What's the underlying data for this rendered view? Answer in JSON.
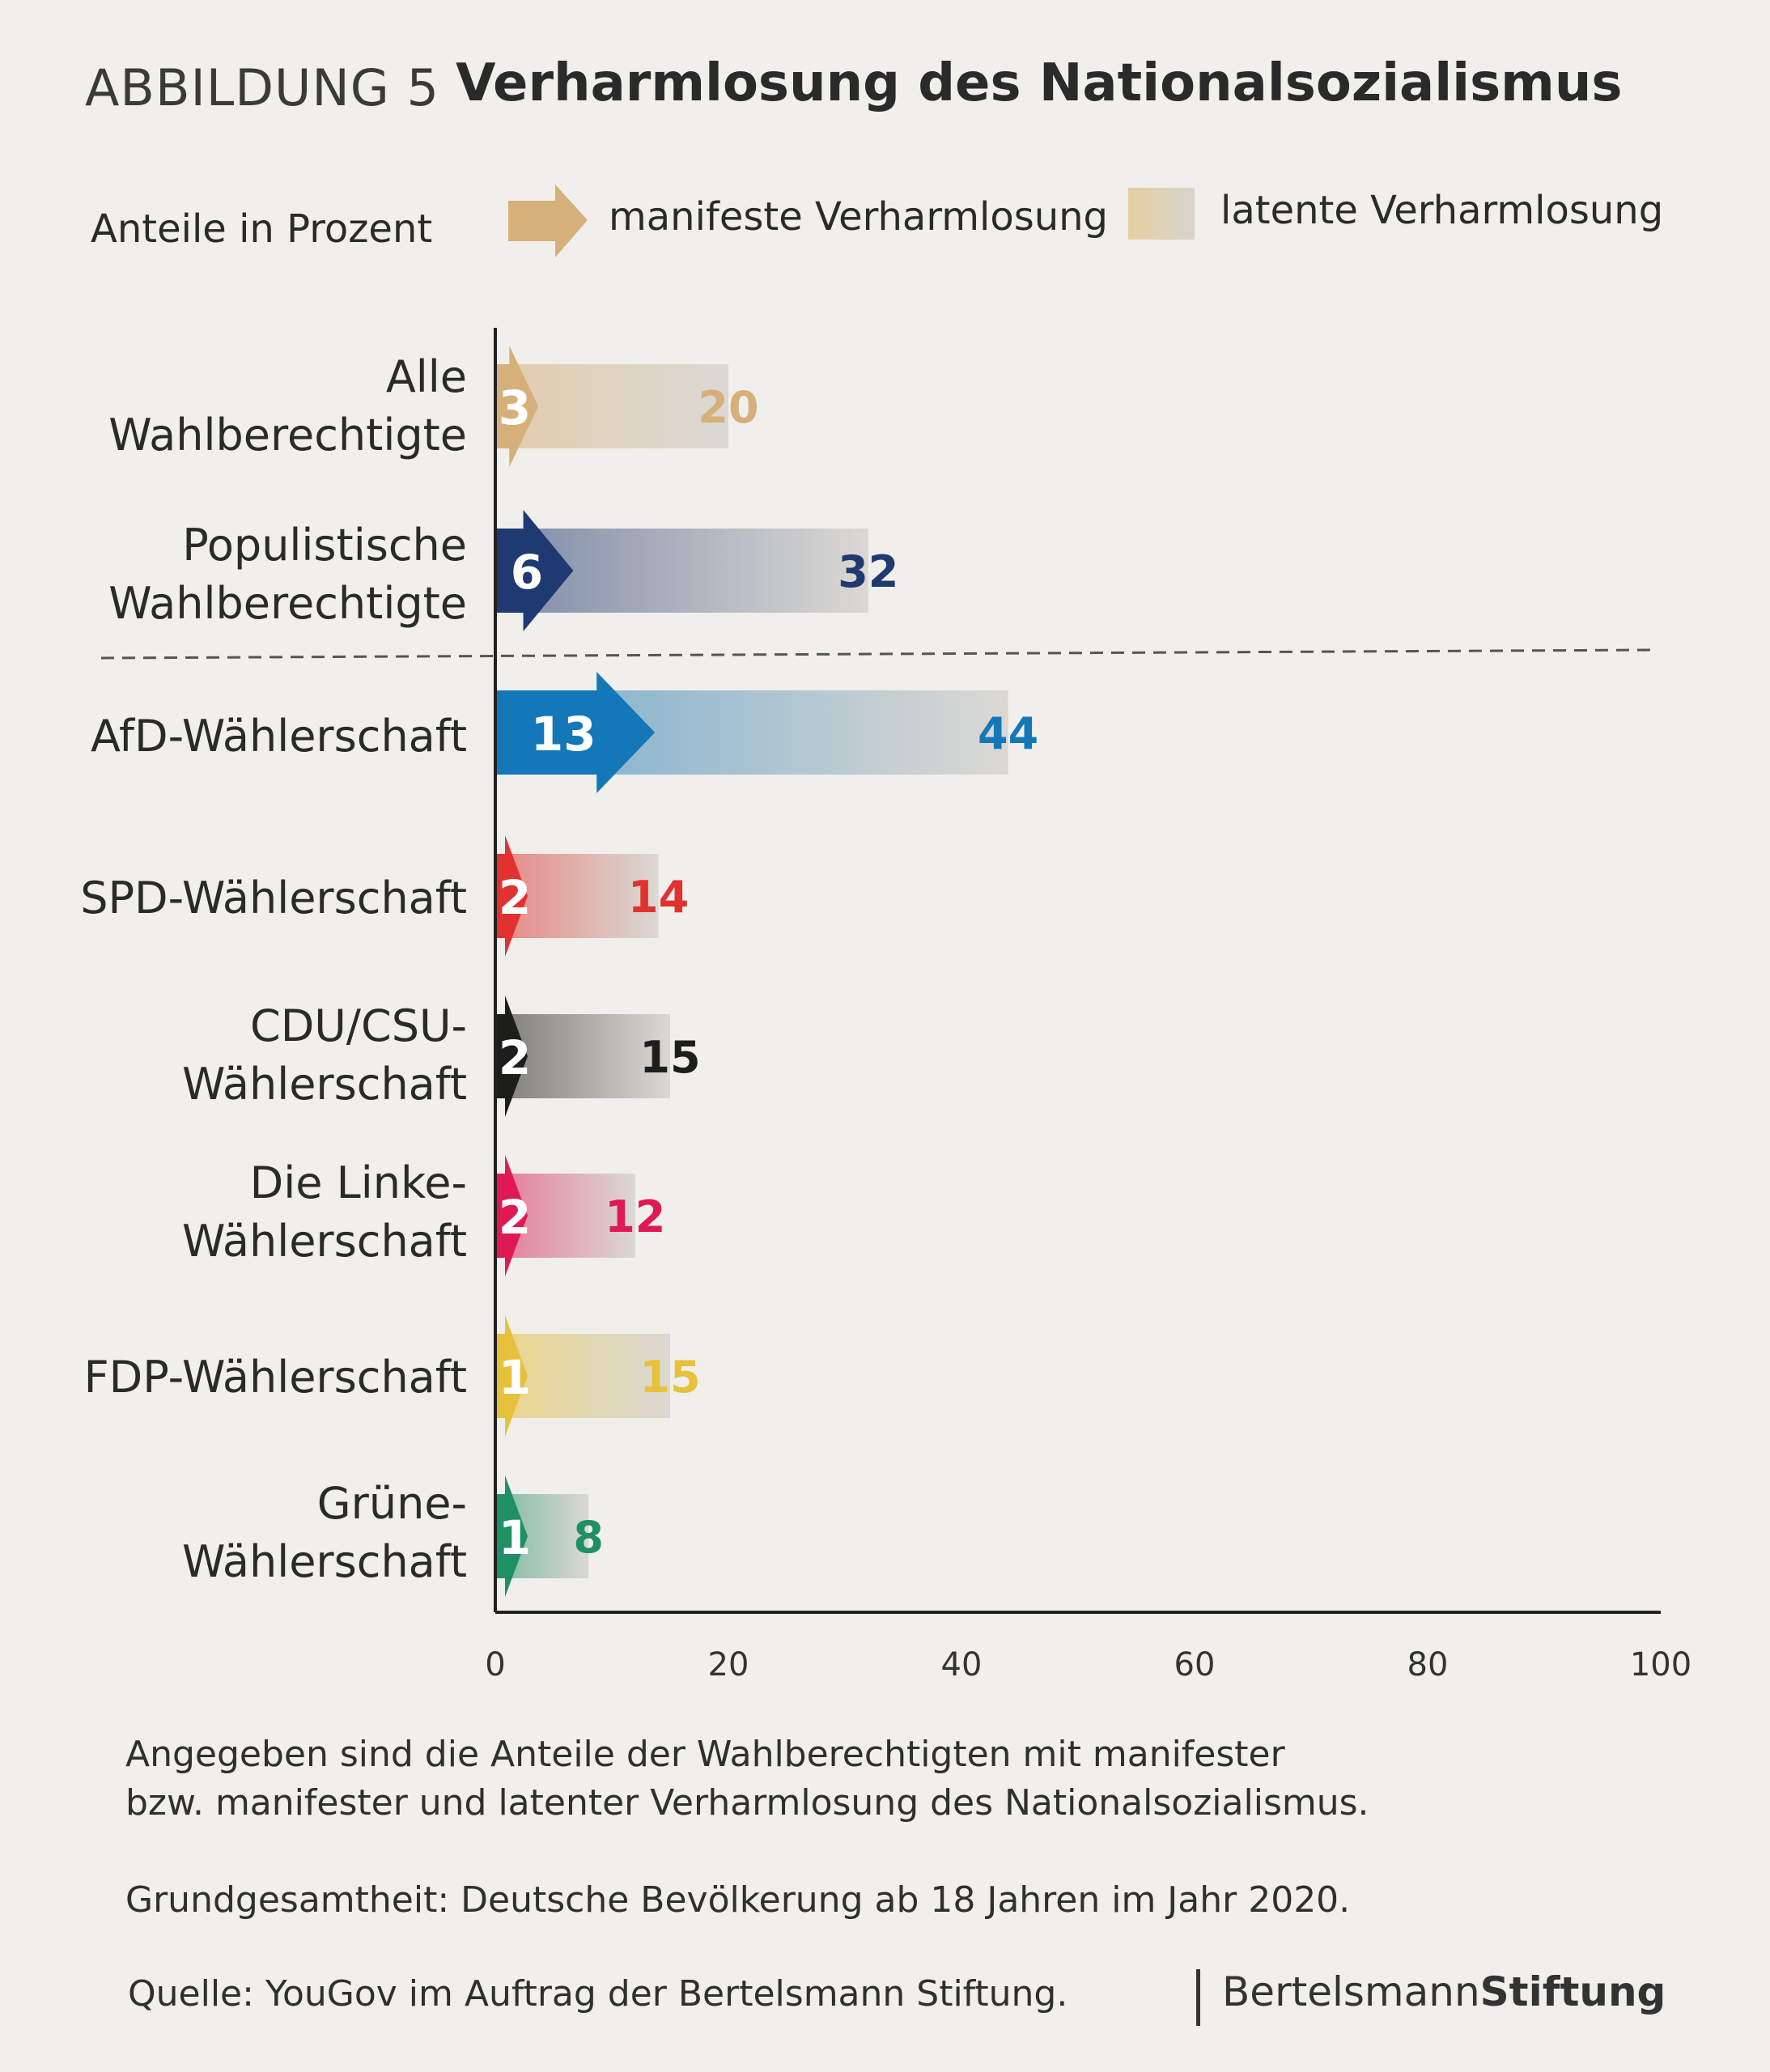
{
  "header": {
    "figure_label": "ABBILDUNG 5",
    "title": "Verharmlosung des Nationalsozialismus"
  },
  "legend": {
    "unit": "Anteile in Prozent",
    "manifest": "manifeste Verharmlosung",
    "latent": "latente Verharmlosung"
  },
  "chart_data": {
    "type": "bar",
    "orientation": "horizontal",
    "title": "Verharmlosung des Nationalsozialismus",
    "unit": "Anteile in Prozent",
    "categories": [
      [
        "Alle",
        "Wahlberechtigte"
      ],
      [
        "Populistische",
        "Wahlberechtigte"
      ],
      [
        "AfD-Wählerschaft"
      ],
      [
        "SPD-Wählerschaft"
      ],
      [
        "CDU/CSU-",
        "Wählerschaft"
      ],
      [
        "Die Linke-",
        "Wählerschaft"
      ],
      [
        "FDP-Wählerschaft"
      ],
      [
        "Grüne-",
        "Wählerschaft"
      ]
    ],
    "series": [
      {
        "name": "manifeste Verharmlosung",
        "values": [
          3,
          6,
          13,
          2,
          2,
          2,
          1,
          1
        ]
      },
      {
        "name": "latente Verharmlosung",
        "values": [
          20,
          32,
          44,
          14,
          15,
          12,
          15,
          8
        ]
      }
    ],
    "colors": [
      "#d6b07a",
      "#1f3a73",
      "#1478b8",
      "#e1322f",
      "#1d1d1b",
      "#df1a52",
      "#e8c13c",
      "#1f8f64"
    ],
    "value_label_colors": [
      "#d6b07a",
      "#1f3a73",
      "#1478b8",
      "#e1322f",
      "#1d1d1b",
      "#df1a52",
      "#e8c13c",
      "#1f8f64"
    ],
    "xlim": [
      0,
      100
    ],
    "xticks": [
      0,
      20,
      40,
      60,
      80,
      100
    ],
    "grid": false,
    "divider_after_category": 1
  },
  "notes": {
    "line1": "Angegeben sind die Anteile der Wahlberechtigten mit manifester",
    "line2": "bzw. manifester und latenter Verharmlosung des Nationalsozialismus.",
    "population": "Grundgesamtheit: Deutsche Bevölkerung ab 18 Jahren im Jahr 2020.",
    "source": "Quelle: YouGov im Auftrag der Bertelsmann Stiftung."
  },
  "brand": {
    "part1": "Bertelsmann",
    "part2": "Stiftung"
  }
}
